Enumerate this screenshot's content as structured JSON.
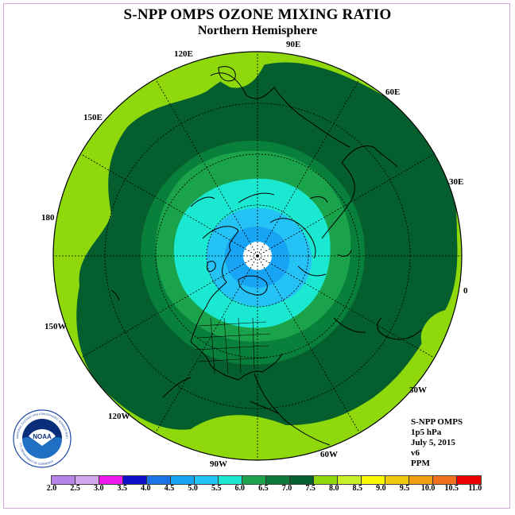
{
  "title": "S-NPP OMPS OZONE MIXING RATIO",
  "subtitle": "Northern Hemisphere",
  "longitude_labels": [
    "90E",
    "60E",
    "30E",
    "0",
    "30W",
    "60W",
    "90W",
    "120W",
    "150W",
    "180",
    "150E",
    "120E"
  ],
  "info": [
    "S-NPP OMPS",
    "1p5 hPa",
    "July 5, 2015",
    "v6",
    "PPM"
  ],
  "logo": {
    "name": "NOAA",
    "ring_text": "NATIONAL OCEANIC AND ATMOSPHERIC ADMINISTRATION",
    "bottom_text": "U.S. DEPARTMENT OF COMMERCE"
  },
  "colorbar": {
    "ticks": [
      "2.0",
      "2.5",
      "3.0",
      "3.5",
      "4.0",
      "4.5",
      "5.0",
      "5.5",
      "6.0",
      "6.5",
      "7.0",
      "7.5",
      "8.0",
      "8.5",
      "9.0",
      "9.5",
      "10.0",
      "10.5",
      "11.0"
    ],
    "colors": [
      "#b785ea",
      "#d4a8ef",
      "#ee17ee",
      "#0f0fc8",
      "#1a74e8",
      "#18a4f4",
      "#25c3f5",
      "#1be8d0",
      "#1aa34a",
      "#097a3b",
      "#055e2e",
      "#8ed80b",
      "#c8f02a",
      "#f8f800",
      "#f0c810",
      "#f0a010",
      "#f07020",
      "#ee0000",
      "#8b4a2a"
    ]
  },
  "colors": {
    "band_6_5": "#087f3b",
    "band_7_0": "#055e2e",
    "band_7_5": "#8ed80b",
    "band_6_0": "#1aa34a",
    "band_5_5": "#1be8d0",
    "band_5_0": "#25c3f5",
    "band_4_5": "#18a4f4",
    "polar_gap": "#ffffff"
  }
}
